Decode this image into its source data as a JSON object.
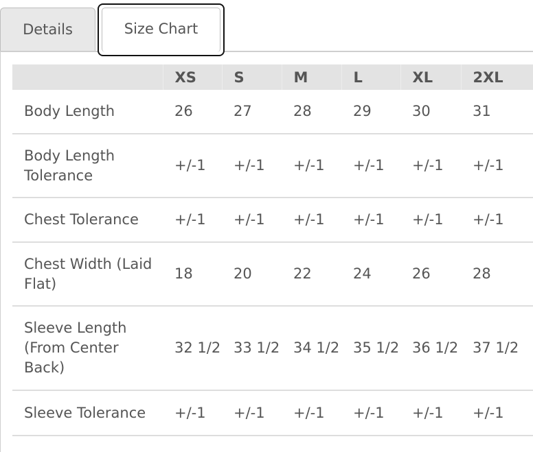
{
  "tabs": {
    "details_label": "Details",
    "size_chart_label": "Size Chart",
    "active": "Size Chart"
  },
  "table": {
    "headers": [
      "",
      "XS",
      "S",
      "M",
      "L",
      "XL",
      "2XL"
    ],
    "rows": [
      {
        "label": "Body Length",
        "values": [
          "26",
          "27",
          "28",
          "29",
          "30",
          "31"
        ]
      },
      {
        "label": "Body Length Tolerance",
        "values": [
          "+/-1",
          "+/-1",
          "+/-1",
          "+/-1",
          "+/-1",
          "+/-1"
        ]
      },
      {
        "label": "Chest Tolerance",
        "values": [
          "+/-1",
          "+/-1",
          "+/-1",
          "+/-1",
          "+/-1",
          "+/-1"
        ]
      },
      {
        "label": "Chest Width (Laid Flat)",
        "values": [
          "18",
          "20",
          "22",
          "24",
          "26",
          "28"
        ]
      },
      {
        "label": "Sleeve Length (From Center Back)",
        "values": [
          "32 1/2",
          "33 1/2",
          "34 1/2",
          "35 1/2",
          "36 1/2",
          "37 1/2"
        ]
      },
      {
        "label": "Sleeve Tolerance",
        "values": [
          "+/-1",
          "+/-1",
          "+/-1",
          "+/-1",
          "+/-1",
          "+/-1"
        ]
      }
    ]
  },
  "colors": {
    "text": "#555555",
    "header_bg": "#e3e3e3",
    "inactive_tab_bg": "#e8e8e8",
    "active_tab_border": "#111111",
    "row_divider": "#dddddd"
  }
}
